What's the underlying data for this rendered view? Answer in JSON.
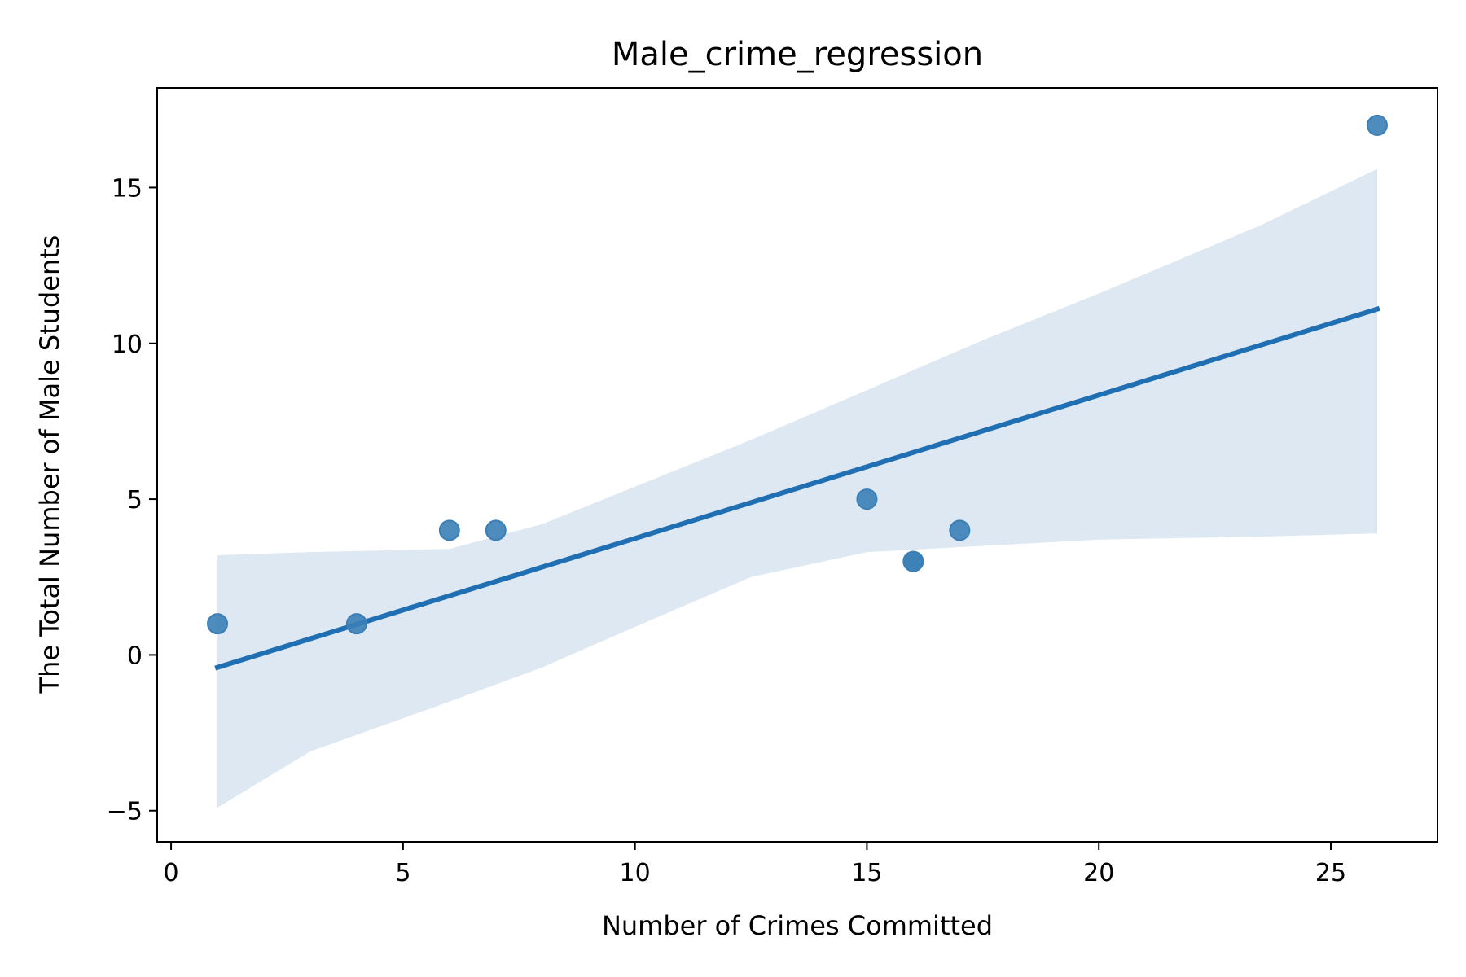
{
  "chart_data": {
    "type": "scatter",
    "title": "Male_crime_regression",
    "xlabel": "Number of Crimes Committed",
    "ylabel": "The Total Number of Male Students",
    "xlim": [
      -0.3,
      27.3
    ],
    "ylim": [
      -6,
      18.2
    ],
    "xticks": [
      0,
      5,
      10,
      15,
      20,
      25
    ],
    "yticks": [
      -5,
      0,
      5,
      10,
      15
    ],
    "xtick_labels": [
      "0",
      "5",
      "10",
      "15",
      "20",
      "25"
    ],
    "ytick_labels": [
      "−5",
      "0",
      "5",
      "10",
      "15"
    ],
    "grid": false,
    "colors": {
      "points": "#3b7fb6",
      "line": "#1f6fb2",
      "band": "#dde8f2"
    },
    "points": [
      {
        "x": 1,
        "y": 1
      },
      {
        "x": 4,
        "y": 1
      },
      {
        "x": 6,
        "y": 4
      },
      {
        "x": 7,
        "y": 4
      },
      {
        "x": 15,
        "y": 5
      },
      {
        "x": 16,
        "y": 3
      },
      {
        "x": 16,
        "y": 3
      },
      {
        "x": 17,
        "y": 4
      },
      {
        "x": 26,
        "y": 17
      }
    ],
    "regression_line": {
      "x": [
        1,
        26
      ],
      "y": [
        -0.4,
        11.1
      ]
    },
    "confidence_band": {
      "x": [
        1,
        3,
        6,
        8,
        10,
        12.5,
        15,
        17.5,
        20,
        23.5,
        26
      ],
      "lower": [
        -4.9,
        -3.1,
        -1.5,
        -0.4,
        0.9,
        2.5,
        3.3,
        3.5,
        3.7,
        3.8,
        3.9
      ],
      "upper": [
        3.2,
        3.3,
        3.4,
        4.2,
        5.4,
        6.9,
        8.5,
        10.1,
        11.6,
        13.8,
        15.6
      ]
    }
  }
}
